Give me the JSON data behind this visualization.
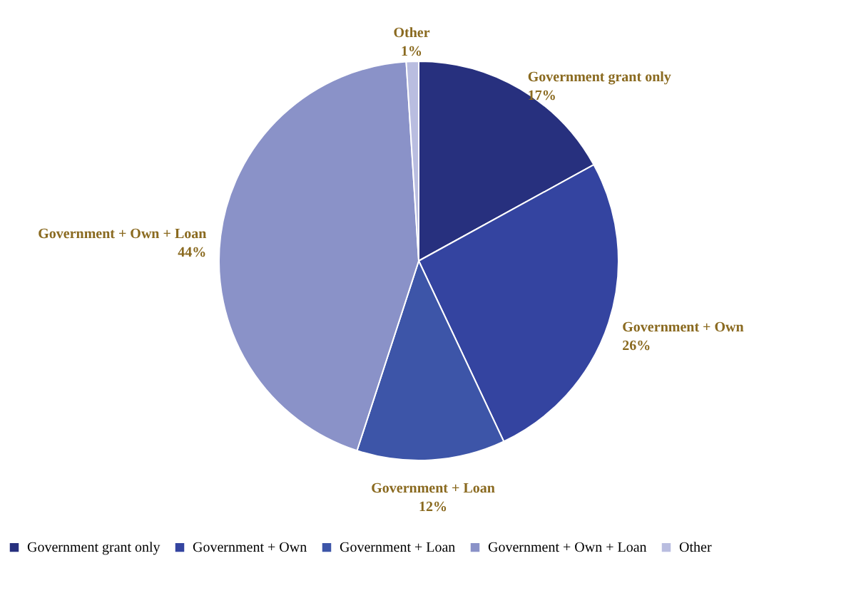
{
  "chart_data": {
    "type": "pie",
    "categories": [
      "Government grant only",
      "Government + Own",
      "Government + Loan",
      "Government + Own + Loan",
      "Other"
    ],
    "values": [
      17,
      26,
      12,
      44,
      1
    ],
    "value_labels": [
      "17%",
      "26%",
      "12%",
      "44%",
      "1%"
    ],
    "colors": [
      "#27307e",
      "#3444a0",
      "#3d55a8",
      "#8a92c8",
      "#b9bde0"
    ],
    "legend": "bottom"
  }
}
